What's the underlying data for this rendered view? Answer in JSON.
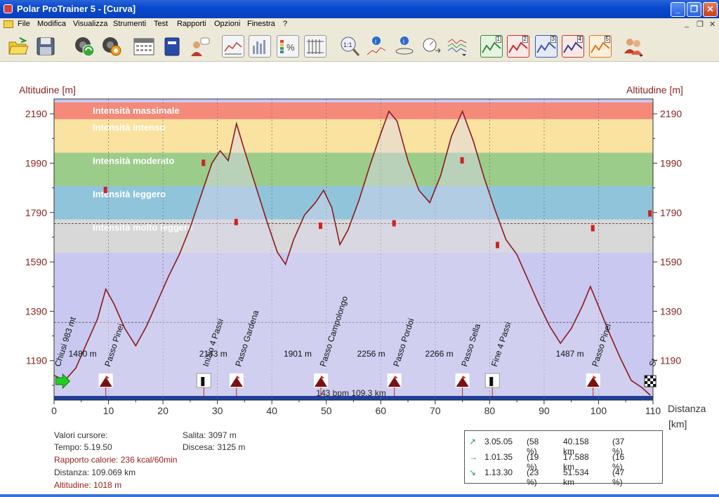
{
  "window": {
    "title": "Polar ProTrainer 5 - [Curva]"
  },
  "menu": [
    "File",
    "Modifica",
    "Visualizza",
    "Strumenti",
    "Test",
    "Rapporti",
    "Opzioni",
    "Finestra",
    "?"
  ],
  "toolbar": {
    "icons": [
      "open-folder-icon",
      "save-icon",
      "sync-icon",
      "settings-icon",
      "calendar-icon",
      "diary-icon",
      "person-icon",
      "curve-view-icon",
      "bar-view-icon",
      "percent-icon",
      "table-icon",
      "zoom-1-1-icon",
      "info-chart-icon",
      "info-nav-icon",
      "speedometer-icon",
      "multi-curve-icon",
      "sport-zone-1-icon",
      "sport-zone-2-icon",
      "sport-zone-3-icon",
      "sport-zone-4-icon",
      "sport-zone-5-icon",
      "users-icon"
    ],
    "zone_numbers": [
      "1",
      "2",
      "3",
      "4",
      "5"
    ]
  },
  "chart_data": {
    "type": "area",
    "ylabel_left": "Altitudine [m]",
    "ylabel_right": "Altitudine [m]",
    "xlabel": "Distanza",
    "xunit": "[km]",
    "xlim": [
      0,
      110
    ],
    "ylim": [
      1030,
      2250
    ],
    "x_ticks": [
      0,
      10,
      20,
      30,
      40,
      50,
      60,
      70,
      80,
      90,
      100,
      110
    ],
    "y_ticks": [
      1190,
      1390,
      1590,
      1790,
      1990,
      2190
    ],
    "grid": true,
    "zones": [
      {
        "name": "Intensità massimale",
        "ylow": 2168,
        "yhigh": 2236,
        "color": "#f58a7a"
      },
      {
        "name": "Intensità intenso",
        "ylow": 2032,
        "yhigh": 2168,
        "color": "#fae3a0"
      },
      {
        "name": "Intensità moderato",
        "ylow": 1897,
        "yhigh": 2032,
        "color": "#9ccc8a"
      },
      {
        "name": "Intensità leggero",
        "ylow": 1762,
        "yhigh": 1897,
        "color": "#90c4da"
      },
      {
        "name": "Intensità molto leggero",
        "ylow": 1627,
        "yhigh": 1762,
        "color": "#d8d8d8"
      }
    ],
    "below_zone_color": "#c8c8f0",
    "altitude_profile": {
      "x": [
        0,
        2,
        4,
        6,
        8,
        9.5,
        11,
        13,
        15,
        17,
        19,
        21,
        23,
        25,
        27,
        29,
        30.5,
        32,
        33.5,
        35,
        37,
        39,
        41,
        42.5,
        44,
        46,
        48,
        49.5,
        51,
        52.5,
        54,
        56,
        58,
        60,
        61.5,
        63,
        65,
        67,
        69,
        71,
        73,
        75,
        77,
        79,
        81,
        83,
        85,
        87,
        89,
        91,
        93,
        95,
        97,
        98.5,
        100,
        102,
        104,
        106,
        108,
        109.5
      ],
      "y": [
        1130,
        1110,
        1160,
        1260,
        1360,
        1480,
        1420,
        1320,
        1250,
        1330,
        1430,
        1530,
        1620,
        1730,
        1860,
        1990,
        2040,
        2000,
        2150,
        2040,
        1900,
        1760,
        1630,
        1580,
        1680,
        1780,
        1830,
        1880,
        1810,
        1660,
        1720,
        1840,
        1980,
        2110,
        2200,
        2160,
        2000,
        1880,
        1830,
        1940,
        2100,
        2200,
        2080,
        1930,
        1800,
        1680,
        1620,
        1520,
        1420,
        1330,
        1260,
        1320,
        1410,
        1490,
        1410,
        1300,
        1200,
        1110,
        1080,
        1050
      ]
    },
    "hr_markers": [
      {
        "x": 9.5,
        "y": 1880
      },
      {
        "x": 27.5,
        "y": 1990
      },
      {
        "x": 33.5,
        "y": 1750
      },
      {
        "x": 49,
        "y": 1735
      },
      {
        "x": 62.5,
        "y": 1745
      },
      {
        "x": 75,
        "y": 2000
      },
      {
        "x": 81.5,
        "y": 1657
      },
      {
        "x": 99,
        "y": 1725
      },
      {
        "x": 109.5,
        "y": 1785
      }
    ],
    "hr_reference_lines": [
      1745,
      1345
    ],
    "waypoints": [
      {
        "x": 0.3,
        "label": "Chiusi 983 mt",
        "type": "start"
      },
      {
        "x": 9.5,
        "label": "Passo Pinei",
        "type": "pass",
        "alt": "1480 m"
      },
      {
        "x": 27.5,
        "label": "Inizio 4 Passi",
        "type": "marker",
        "alt": ""
      },
      {
        "x": 33.5,
        "label": "Passo Gardena",
        "type": "pass",
        "alt": "2143 m"
      },
      {
        "x": 49,
        "label": "Passo Campolongo",
        "type": "pass",
        "alt": "1901 m"
      },
      {
        "x": 62.5,
        "label": "Passo Pordoi",
        "type": "pass",
        "alt": "2256 m"
      },
      {
        "x": 75,
        "label": "Passo Sella",
        "type": "pass",
        "alt": "2266 m"
      },
      {
        "x": 80.5,
        "label": "Fine 4 Passi",
        "type": "marker",
        "alt": ""
      },
      {
        "x": 99,
        "label": "Passo Pinei",
        "type": "pass",
        "alt": "1487 m"
      },
      {
        "x": 109.5,
        "label": "St",
        "type": "finish"
      }
    ],
    "bottom_summary": "143 bpm 109.3 km"
  },
  "cursor_values": {
    "heading": "Valori cursore:",
    "time": "Tempo: 5.19.50",
    "calories": "Rapporto calorie: 236 kcal/60min",
    "distance": "Distanza: 109.069 km",
    "altitude": "Altitudine: 1018 m",
    "ascent": "Salita: 3097 m",
    "descent": "Discesa: 3125 m"
  },
  "summary_rows": [
    {
      "arrow": "↗",
      "time": "3.05.05",
      "pct": "(58 %)",
      "dist": "40.158 km",
      "dpct": "(37 %)"
    },
    {
      "arrow": "→",
      "time": "1.01.35",
      "pct": "(19 %)",
      "dist": "17.588 km",
      "dpct": "(16 %)"
    },
    {
      "arrow": "↘",
      "time": "1.13.30",
      "pct": "(23 %)",
      "dist": "51.534 km",
      "dpct": "(47 %)"
    }
  ]
}
